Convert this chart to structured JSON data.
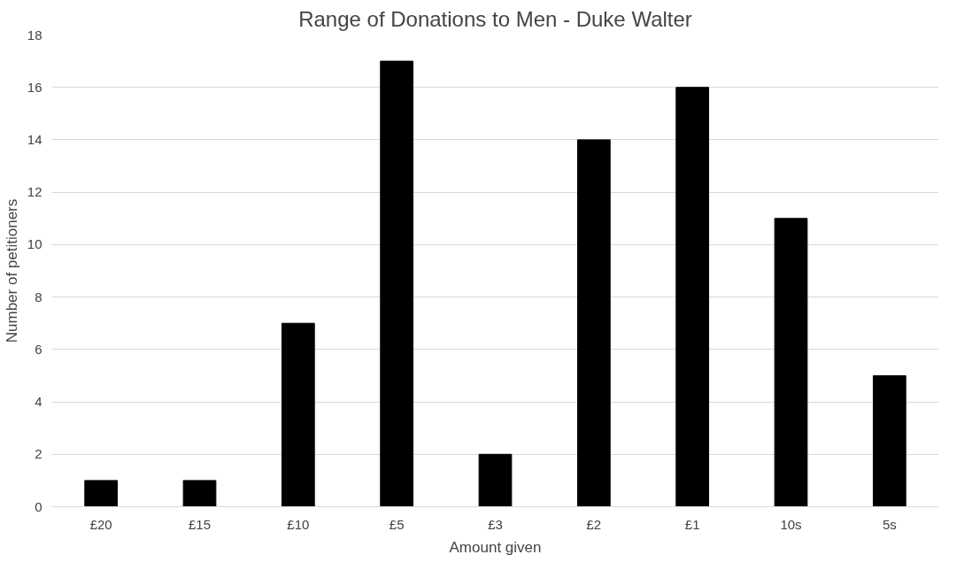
{
  "chart_data": {
    "type": "bar",
    "title": "Range of Donations to Men - Duke Walter",
    "xlabel": "Amount given",
    "ylabel": "Number of petitioners",
    "categories": [
      "£20",
      "£15",
      "£10",
      "£5",
      "£3",
      "£2",
      "£1",
      "10s",
      "5s"
    ],
    "values": [
      1,
      1,
      7,
      17,
      2,
      14,
      16,
      11,
      5
    ],
    "color": "#000000",
    "ylim": [
      0,
      18
    ],
    "yticks": [
      0,
      2,
      4,
      6,
      8,
      10,
      12,
      14,
      16,
      18
    ],
    "grid": "y"
  }
}
